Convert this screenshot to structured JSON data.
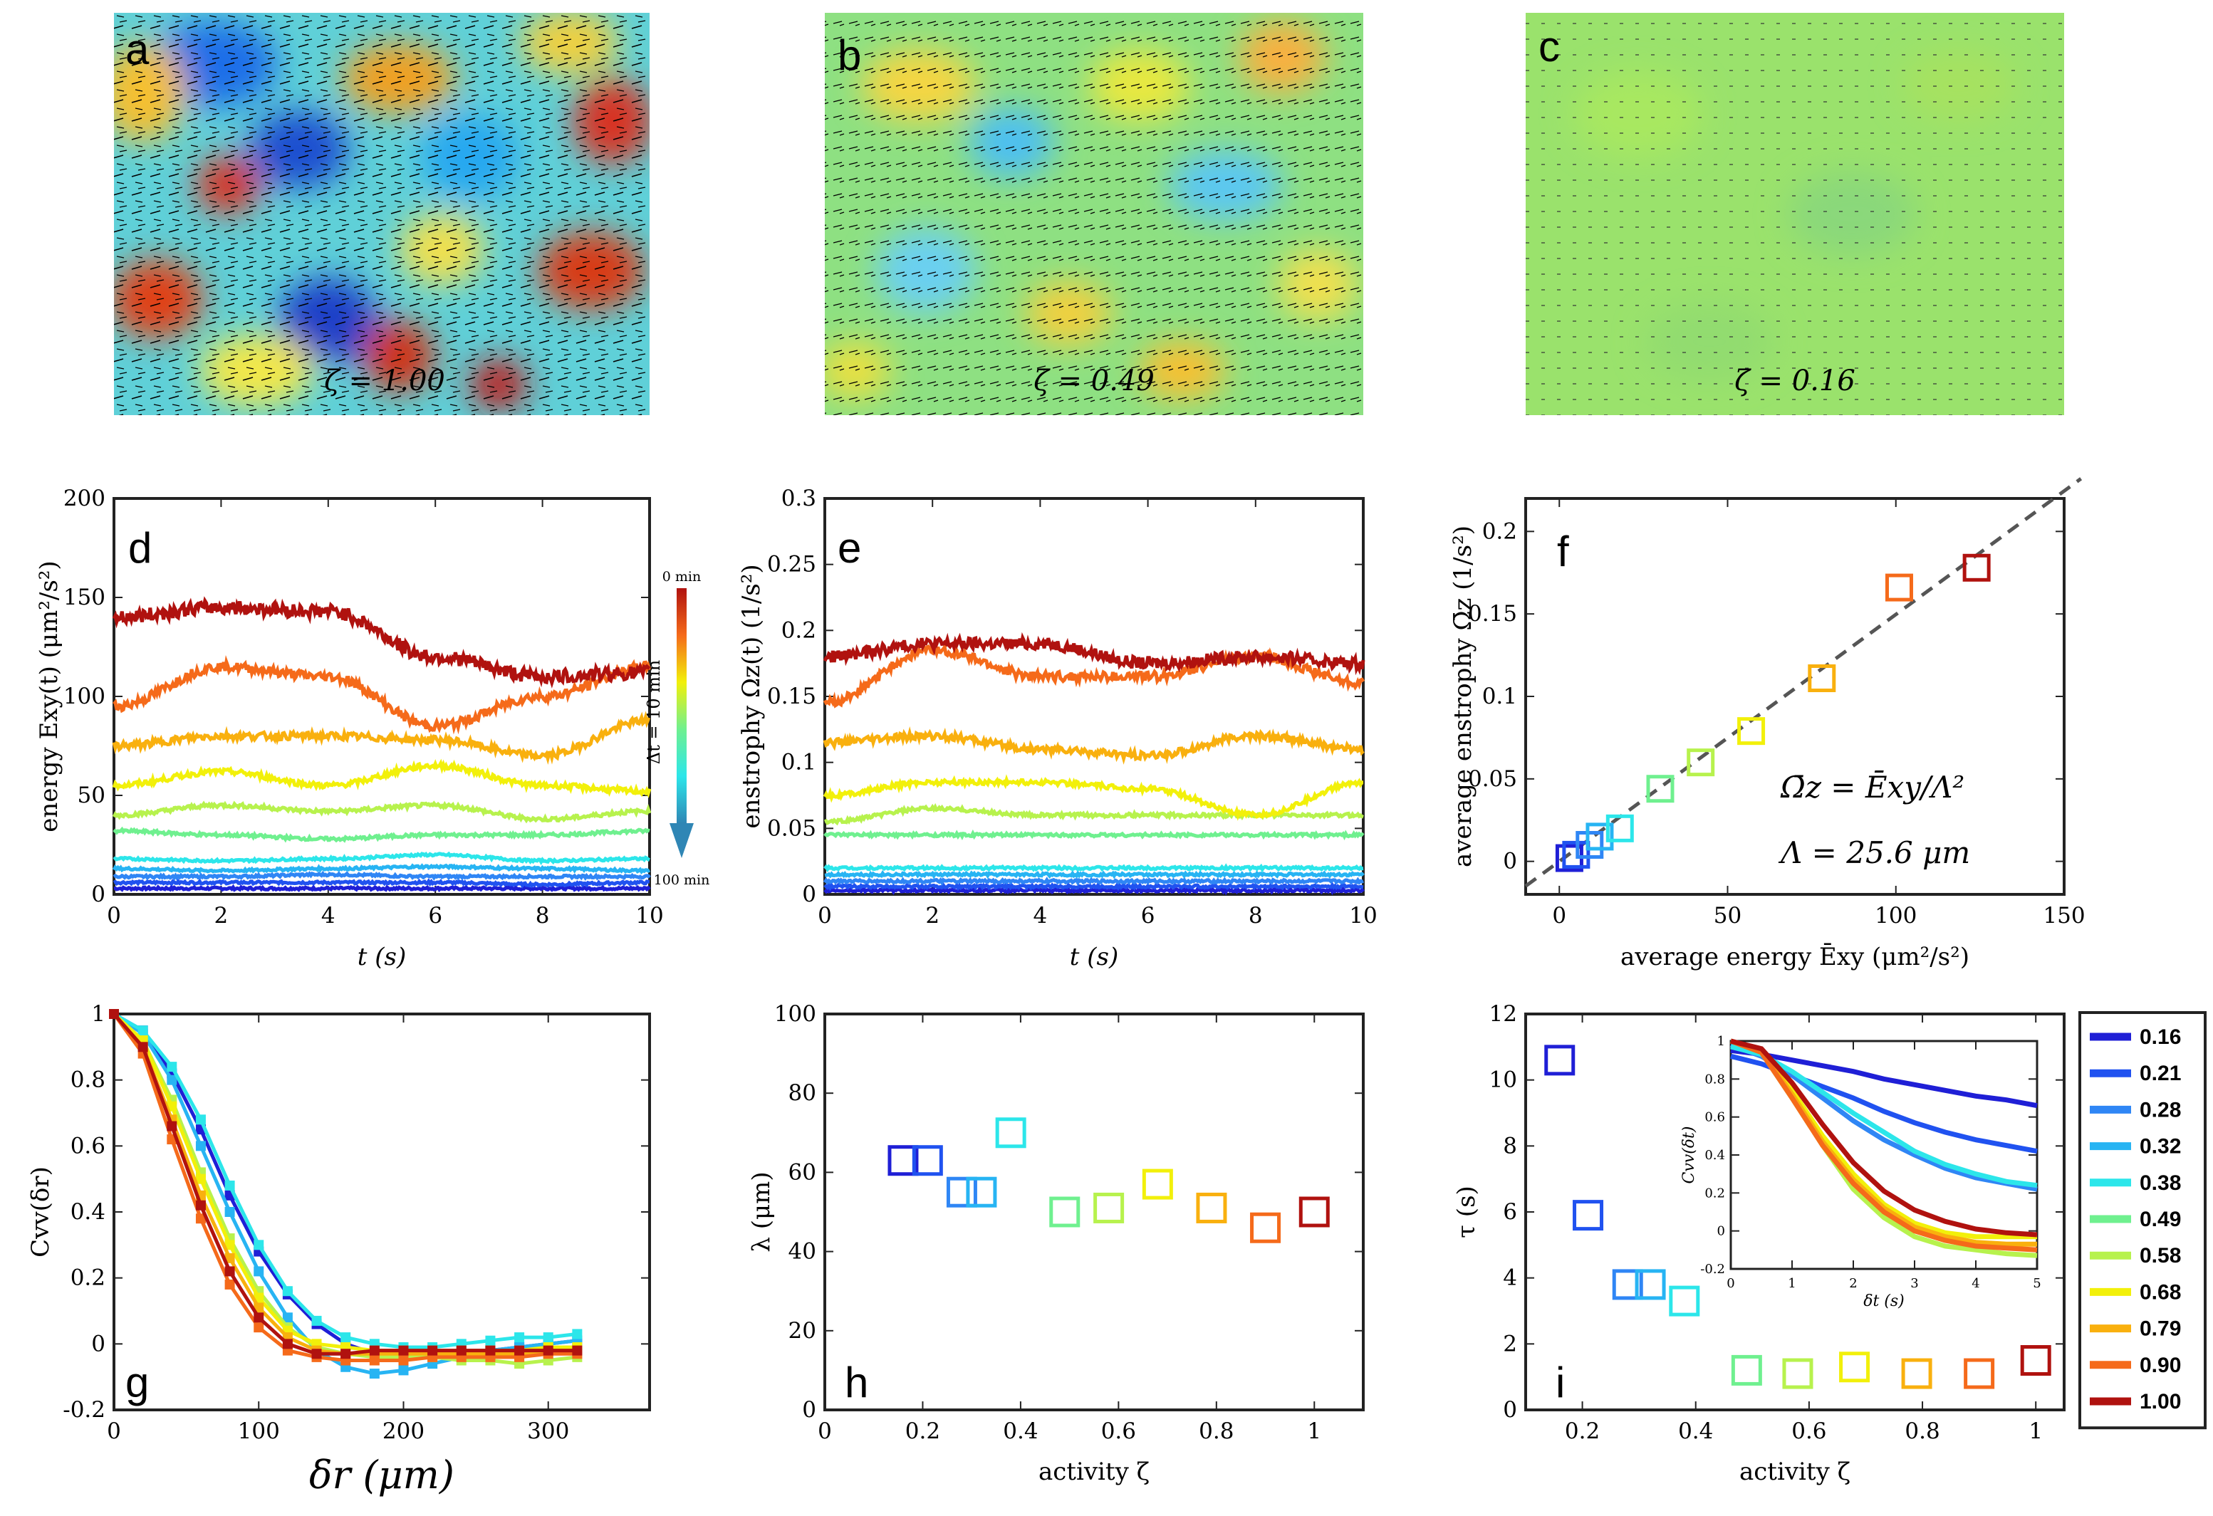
{
  "figure": {
    "panel_labels": [
      "a",
      "b",
      "c",
      "d",
      "e",
      "f",
      "g",
      "h",
      "i"
    ],
    "flow_maps": [
      {
        "id": "a",
        "zeta_label": "ζ = 1.00",
        "zeta": 1.0
      },
      {
        "id": "b",
        "zeta_label": "ζ = 0.49",
        "zeta": 0.49
      },
      {
        "id": "c",
        "zeta_label": "ζ = 0.16",
        "zeta": 0.16
      }
    ],
    "colorbar": {
      "top_label": "0 min",
      "bottom_label": "100 min",
      "mid_label": "Δt = 10 min"
    },
    "annotation_f": {
      "line1": "Ω̄z = Ēxy/Λ²",
      "line2": "Λ = 25.6 μm"
    },
    "legend_title": "",
    "colors": {
      "0.16": "#1f1fd6",
      "0.21": "#2052f0",
      "0.28": "#2f86f5",
      "0.32": "#27b4f3",
      "0.38": "#2ce6ea",
      "0.49": "#6ff08f",
      "0.58": "#b7f24d",
      "0.68": "#f2f00a",
      "0.79": "#f9b00e",
      "0.90": "#f56a1a",
      "1.00": "#b0120f"
    }
  },
  "chart_data": [
    {
      "id": "d",
      "type": "line",
      "title": "",
      "xlabel": "t (s)",
      "ylabel": "energy Exy(t) (μm²/s²)",
      "xlim": [
        0,
        10
      ],
      "ylim": [
        0,
        200
      ],
      "xticks": [
        "0",
        "2",
        "4",
        "6",
        "8",
        "10"
      ],
      "yticks": [
        "0",
        "50",
        "100",
        "150",
        "200"
      ],
      "series": [
        {
          "name": "1.00",
          "mean": [
            140,
            145,
            143,
            120,
            110,
            112
          ]
        },
        {
          "name": "0.90",
          "mean": [
            95,
            115,
            110,
            85,
            100,
            115
          ]
        },
        {
          "name": "0.79",
          "mean": [
            75,
            80,
            80,
            78,
            70,
            88
          ]
        },
        {
          "name": "0.68",
          "mean": [
            55,
            62,
            55,
            65,
            55,
            52
          ]
        },
        {
          "name": "0.58",
          "mean": [
            40,
            45,
            42,
            45,
            38,
            42
          ]
        },
        {
          "name": "0.49",
          "mean": [
            32,
            30,
            28,
            30,
            30,
            32
          ]
        },
        {
          "name": "0.38",
          "mean": [
            18,
            17,
            18,
            20,
            17,
            18
          ]
        },
        {
          "name": "0.32",
          "mean": [
            13,
            12,
            13,
            14,
            13,
            12
          ]
        },
        {
          "name": "0.28",
          "mean": [
            9,
            9,
            10,
            9,
            9,
            9
          ]
        },
        {
          "name": "0.21",
          "mean": [
            6,
            6,
            6,
            6,
            5,
            6
          ]
        },
        {
          "name": "0.16",
          "mean": [
            3,
            3,
            3,
            3,
            3,
            3
          ]
        }
      ]
    },
    {
      "id": "e",
      "type": "line",
      "title": "",
      "xlabel": "t (s)",
      "ylabel": "enstrophy Ωz(t) (1/s²)",
      "xlim": [
        0,
        10
      ],
      "ylim": [
        0,
        0.3
      ],
      "xticks": [
        "0",
        "2",
        "4",
        "6",
        "8",
        "10"
      ],
      "yticks": [
        "0",
        "0.05",
        "0.1",
        "0.15",
        "0.2",
        "0.25",
        "0.3"
      ],
      "series": [
        {
          "name": "1.00",
          "mean": [
            0.18,
            0.19,
            0.19,
            0.175,
            0.18,
            0.175
          ]
        },
        {
          "name": "0.90",
          "mean": [
            0.145,
            0.185,
            0.165,
            0.165,
            0.18,
            0.16
          ]
        },
        {
          "name": "0.79",
          "mean": [
            0.115,
            0.12,
            0.11,
            0.105,
            0.12,
            0.11
          ]
        },
        {
          "name": "0.68",
          "mean": [
            0.075,
            0.085,
            0.085,
            0.08,
            0.06,
            0.085
          ]
        },
        {
          "name": "0.58",
          "mean": [
            0.055,
            0.065,
            0.06,
            0.06,
            0.06,
            0.06
          ]
        },
        {
          "name": "0.49",
          "mean": [
            0.045,
            0.045,
            0.045,
            0.045,
            0.045,
            0.045
          ]
        },
        {
          "name": "0.38",
          "mean": [
            0.02,
            0.02,
            0.02,
            0.02,
            0.02,
            0.02
          ]
        },
        {
          "name": "0.32",
          "mean": [
            0.015,
            0.015,
            0.015,
            0.015,
            0.015,
            0.015
          ]
        },
        {
          "name": "0.28",
          "mean": [
            0.01,
            0.01,
            0.01,
            0.01,
            0.01,
            0.01
          ]
        },
        {
          "name": "0.21",
          "mean": [
            0.006,
            0.006,
            0.006,
            0.006,
            0.006,
            0.006
          ]
        },
        {
          "name": "0.16",
          "mean": [
            0.003,
            0.003,
            0.003,
            0.003,
            0.003,
            0.003
          ]
        }
      ]
    },
    {
      "id": "f",
      "type": "scatter",
      "title": "",
      "xlabel": "average energy Ēxy (μm²/s²)",
      "ylabel": "average enstrophy Ω̄z (1/s²)",
      "xlim": [
        -10,
        150
      ],
      "ylim": [
        -0.02,
        0.22
      ],
      "xticks": [
        "0",
        "50",
        "100",
        "150"
      ],
      "yticks": [
        "0",
        "0.05",
        "0.1",
        "0.15",
        "0.2"
      ],
      "points": [
        {
          "name": "0.16",
          "x": 3,
          "y": 0.002
        },
        {
          "name": "0.21",
          "x": 5,
          "y": 0.004
        },
        {
          "name": "0.28",
          "x": 9,
          "y": 0.01
        },
        {
          "name": "0.32",
          "x": 12,
          "y": 0.015
        },
        {
          "name": "0.38",
          "x": 18,
          "y": 0.02
        },
        {
          "name": "0.49",
          "x": 30,
          "y": 0.044
        },
        {
          "name": "0.58",
          "x": 42,
          "y": 0.06
        },
        {
          "name": "0.68",
          "x": 57,
          "y": 0.079
        },
        {
          "name": "0.79",
          "x": 78,
          "y": 0.111
        },
        {
          "name": "0.90",
          "x": 101,
          "y": 0.166
        },
        {
          "name": "1.00",
          "x": 124,
          "y": 0.178
        }
      ],
      "fit_line": {
        "x": [
          -10,
          155
        ],
        "y": [
          -0.015,
          0.232
        ]
      }
    },
    {
      "id": "g",
      "type": "line",
      "title": "",
      "xlabel": "δr (μm)",
      "ylabel": "Cvv(δr)",
      "xlim": [
        0,
        370
      ],
      "ylim": [
        -0.2,
        1
      ],
      "xticks": [
        "0",
        "100",
        "200",
        "300"
      ],
      "yticks": [
        "-0.2",
        "0",
        "0.2",
        "0.4",
        "0.6",
        "0.8",
        "1"
      ],
      "x": [
        0,
        20,
        40,
        60,
        80,
        100,
        120,
        140,
        160,
        180,
        200,
        220,
        240,
        260,
        280,
        300,
        320
      ],
      "series": [
        {
          "name": "0.16",
          "values": [
            1,
            0.95,
            0.82,
            0.65,
            0.45,
            0.28,
            0.15,
            0.06,
            0.0,
            -0.03,
            -0.04,
            -0.03,
            -0.02,
            -0.02,
            -0.01,
            0.0,
            0.01
          ]
        },
        {
          "name": "0.32",
          "values": [
            1,
            0.94,
            0.8,
            0.6,
            0.4,
            0.22,
            0.08,
            -0.02,
            -0.07,
            -0.09,
            -0.08,
            -0.06,
            -0.04,
            -0.02,
            -0.01,
            0.0,
            0.01
          ]
        },
        {
          "name": "0.38",
          "values": [
            1,
            0.95,
            0.84,
            0.68,
            0.48,
            0.3,
            0.16,
            0.07,
            0.02,
            0.0,
            -0.01,
            -0.01,
            0.0,
            0.01,
            0.02,
            0.02,
            0.03
          ]
        },
        {
          "name": "0.58",
          "values": [
            1,
            0.92,
            0.74,
            0.52,
            0.32,
            0.16,
            0.05,
            -0.01,
            -0.03,
            -0.04,
            -0.04,
            -0.04,
            -0.05,
            -0.05,
            -0.06,
            -0.05,
            -0.04
          ]
        },
        {
          "name": "0.68",
          "values": [
            1,
            0.92,
            0.72,
            0.5,
            0.3,
            0.14,
            0.04,
            0.0,
            -0.01,
            -0.02,
            -0.02,
            -0.02,
            -0.02,
            -0.02,
            -0.02,
            -0.01,
            -0.01
          ]
        },
        {
          "name": "0.79",
          "values": [
            1,
            0.9,
            0.68,
            0.45,
            0.26,
            0.11,
            0.02,
            -0.02,
            -0.03,
            -0.03,
            -0.03,
            -0.03,
            -0.03,
            -0.03,
            -0.03,
            -0.02,
            -0.02
          ]
        },
        {
          "name": "0.90",
          "values": [
            1,
            0.88,
            0.62,
            0.38,
            0.18,
            0.05,
            -0.02,
            -0.04,
            -0.05,
            -0.05,
            -0.05,
            -0.04,
            -0.04,
            -0.04,
            -0.04,
            -0.03,
            -0.03
          ]
        },
        {
          "name": "1.00",
          "values": [
            1,
            0.9,
            0.66,
            0.42,
            0.22,
            0.08,
            0.0,
            -0.03,
            -0.03,
            -0.02,
            -0.02,
            -0.02,
            -0.02,
            -0.02,
            -0.02,
            -0.02,
            -0.02
          ]
        }
      ]
    },
    {
      "id": "h",
      "type": "scatter",
      "title": "",
      "xlabel": "activity ζ",
      "ylabel": "λ (μm)",
      "xlim": [
        0,
        1.1
      ],
      "ylim": [
        0,
        100
      ],
      "xticks": [
        "0",
        "0.2",
        "0.4",
        "0.6",
        "0.8",
        "1"
      ],
      "yticks": [
        "0",
        "20",
        "40",
        "60",
        "80",
        "100"
      ],
      "points": [
        {
          "name": "0.16",
          "x": 0.16,
          "y": 63
        },
        {
          "name": "0.21",
          "x": 0.21,
          "y": 63
        },
        {
          "name": "0.28",
          "x": 0.28,
          "y": 55
        },
        {
          "name": "0.32",
          "x": 0.32,
          "y": 55
        },
        {
          "name": "0.38",
          "x": 0.38,
          "y": 70
        },
        {
          "name": "0.49",
          "x": 0.49,
          "y": 50
        },
        {
          "name": "0.58",
          "x": 0.58,
          "y": 51
        },
        {
          "name": "0.68",
          "x": 0.68,
          "y": 57
        },
        {
          "name": "0.79",
          "x": 0.79,
          "y": 51
        },
        {
          "name": "0.90",
          "x": 0.9,
          "y": 46
        },
        {
          "name": "1.00",
          "x": 1.0,
          "y": 50
        }
      ]
    },
    {
      "id": "i",
      "type": "scatter",
      "title": "",
      "xlabel": "activity ζ",
      "ylabel": "τ (s)",
      "xlim": [
        0.1,
        1.05
      ],
      "ylim": [
        0,
        12
      ],
      "xticks": [
        "0.2",
        "0.4",
        "0.6",
        "0.8",
        "1"
      ],
      "yticks": [
        "0",
        "2",
        "4",
        "6",
        "8",
        "10",
        "12"
      ],
      "points": [
        {
          "name": "0.16",
          "x": 0.16,
          "y": 10.6
        },
        {
          "name": "0.21",
          "x": 0.21,
          "y": 5.9
        },
        {
          "name": "0.28",
          "x": 0.28,
          "y": 3.8
        },
        {
          "name": "0.32",
          "x": 0.32,
          "y": 3.8
        },
        {
          "name": "0.38",
          "x": 0.38,
          "y": 3.3
        },
        {
          "name": "0.49",
          "x": 0.49,
          "y": 1.2
        },
        {
          "name": "0.58",
          "x": 0.58,
          "y": 1.1
        },
        {
          "name": "0.68",
          "x": 0.68,
          "y": 1.3
        },
        {
          "name": "0.79",
          "x": 0.79,
          "y": 1.1
        },
        {
          "name": "0.90",
          "x": 0.9,
          "y": 1.1
        },
        {
          "name": "1.00",
          "x": 1.0,
          "y": 1.5
        }
      ]
    },
    {
      "id": "i-inset",
      "type": "line",
      "title": "",
      "xlabel": "δt (s)",
      "ylabel": "Cvv(δt)",
      "xlim": [
        0,
        5
      ],
      "ylim": [
        -0.2,
        1
      ],
      "xticks": [
        "0",
        "1",
        "2",
        "3",
        "4",
        "5"
      ],
      "yticks": [
        "-0.2",
        "0",
        "0.2",
        "0.4",
        "0.6",
        "0.8",
        "1"
      ],
      "x": [
        0,
        0.5,
        1,
        1.5,
        2,
        2.5,
        3,
        3.5,
        4,
        4.5,
        5
      ],
      "series": [
        {
          "name": "0.16",
          "values": [
            0.95,
            0.93,
            0.9,
            0.87,
            0.84,
            0.8,
            0.77,
            0.74,
            0.71,
            0.69,
            0.66
          ]
        },
        {
          "name": "0.21",
          "values": [
            0.92,
            0.88,
            0.82,
            0.76,
            0.7,
            0.63,
            0.57,
            0.52,
            0.48,
            0.45,
            0.42
          ]
        },
        {
          "name": "0.28",
          "values": [
            0.98,
            0.92,
            0.82,
            0.7,
            0.58,
            0.48,
            0.4,
            0.33,
            0.28,
            0.25,
            0.22
          ]
        },
        {
          "name": "0.38",
          "values": [
            0.97,
            0.93,
            0.84,
            0.73,
            0.62,
            0.52,
            0.42,
            0.35,
            0.3,
            0.26,
            0.24
          ]
        },
        {
          "name": "0.58",
          "values": [
            1,
            0.94,
            0.7,
            0.45,
            0.22,
            0.07,
            -0.03,
            -0.08,
            -0.1,
            -0.12,
            -0.13
          ]
        },
        {
          "name": "0.68",
          "values": [
            1,
            0.95,
            0.74,
            0.5,
            0.3,
            0.14,
            0.04,
            -0.01,
            -0.03,
            -0.03,
            -0.03
          ]
        },
        {
          "name": "0.79",
          "values": [
            1,
            0.95,
            0.72,
            0.47,
            0.27,
            0.12,
            0.02,
            -0.03,
            -0.06,
            -0.07,
            -0.07
          ]
        },
        {
          "name": "0.90",
          "values": [
            1,
            0.94,
            0.7,
            0.45,
            0.25,
            0.1,
            0.0,
            -0.05,
            -0.08,
            -0.09,
            -0.1
          ]
        },
        {
          "name": "1.00",
          "values": [
            1,
            0.96,
            0.78,
            0.56,
            0.36,
            0.21,
            0.11,
            0.05,
            0.01,
            -0.01,
            -0.02
          ]
        }
      ]
    }
  ],
  "legend": {
    "entries": [
      "0.16",
      "0.21",
      "0.28",
      "0.32",
      "0.38",
      "0.49",
      "0.58",
      "0.68",
      "0.79",
      "0.90",
      "1.00"
    ]
  }
}
